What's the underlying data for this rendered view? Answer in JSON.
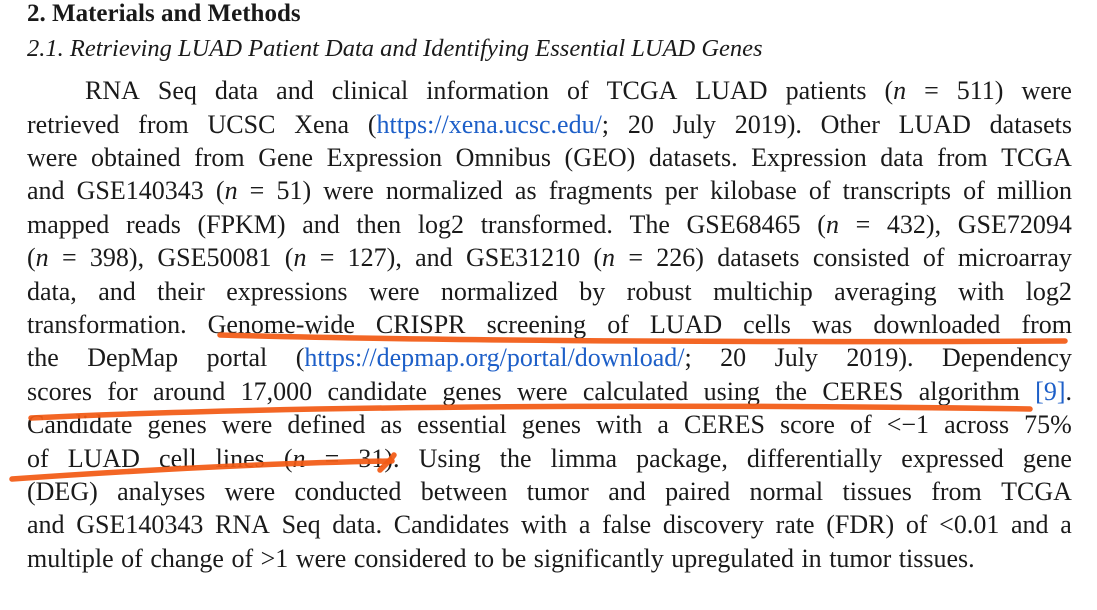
{
  "section": {
    "number": "2.",
    "title": "Materials and Methods"
  },
  "subsection": {
    "number": "2.1.",
    "title": "Retrieving LUAD Patient Data and Identifying Essential LUAD Genes"
  },
  "lines": [
    [
      "RNA",
      "Seq",
      "data",
      "and",
      "clinical",
      "information",
      "of",
      "TCGA",
      "LUAD",
      "patients",
      "(n",
      "=",
      "511)",
      "were"
    ],
    [
      "retrieved",
      "from",
      "UCSC",
      "Xena",
      "(https://xena.ucsc.edu/;",
      "20",
      "July",
      "2019).",
      "Other",
      "LUAD",
      "datasets"
    ],
    [
      "were",
      "obtained",
      "from",
      "Gene",
      "Expression",
      "Omnibus",
      "(GEO)",
      "datasets.",
      "Expression",
      "data",
      "from",
      "TCGA"
    ],
    [
      "and",
      "GSE140343",
      "(n",
      "=",
      "51)",
      "were",
      "normalized",
      "as",
      "fragments",
      "per",
      "kilobase",
      "of",
      "transcripts",
      "of",
      "million"
    ],
    [
      "mapped",
      "reads",
      "(FPKM)",
      "and",
      "then",
      "log2",
      "transformed.",
      "The",
      "GSE68465",
      "(n",
      "=",
      "432),",
      "GSE72094"
    ],
    [
      "(n",
      "=",
      "398),",
      "GSE50081",
      "(n",
      "=",
      "127),",
      "and",
      "GSE31210",
      "(n",
      "=",
      "226)",
      "datasets",
      "consisted",
      "of",
      "microarray"
    ],
    [
      "data,",
      "and",
      "their",
      "expressions",
      "were",
      "normalized",
      "by",
      "robust",
      "multichip",
      "averaging",
      "with",
      "log2"
    ],
    [
      "transformation.",
      "Genome-wide",
      "CRISPR",
      "screening",
      "of",
      "LUAD",
      "cells",
      "was",
      "downloaded",
      "from"
    ],
    [
      "the",
      "DepMap",
      "portal",
      "(https://depmap.org/portal/download/;",
      "20",
      "July",
      "2019).",
      "Dependency"
    ],
    [
      "scores",
      "for",
      "around",
      "17,000",
      "candidate",
      "genes",
      "were",
      "calculated",
      "using",
      "the",
      "CERES",
      "algorithm",
      "[9]."
    ],
    [
      "Candidate",
      "genes",
      "were",
      "defined",
      "as",
      "essential",
      "genes",
      "with",
      "a",
      "CERES",
      "score",
      "of",
      "<−1",
      "across",
      "75%"
    ],
    [
      "of",
      "LUAD",
      "cell",
      "lines",
      "(n",
      "=",
      "31).",
      "Using",
      "the",
      "limma",
      "package,",
      "differentially",
      "expressed",
      "gene"
    ],
    [
      "(DEG)",
      "analyses",
      "were",
      "conducted",
      "between",
      "tumor",
      "and",
      "paired",
      "normal",
      "tissues",
      "from",
      "TCGA"
    ],
    [
      "and",
      "GSE140343",
      "RNA",
      "Seq",
      "data.",
      "Candidates",
      "with",
      "a",
      "false",
      "discovery",
      "rate",
      "(FDR)",
      "of",
      "<0.01",
      "and",
      "a"
    ],
    [
      "multiple",
      "of",
      "change",
      "of",
      ">1",
      "were",
      "considered",
      "to",
      "be",
      "significantly",
      "upregulated",
      "in",
      "tumor",
      "tissues."
    ]
  ],
  "links": {
    "xena": "https://xena.ucsc.edu/",
    "depmap": "https://depmap.org/portal/download/",
    "citation": "9"
  },
  "annotation_color": "#f25a14"
}
